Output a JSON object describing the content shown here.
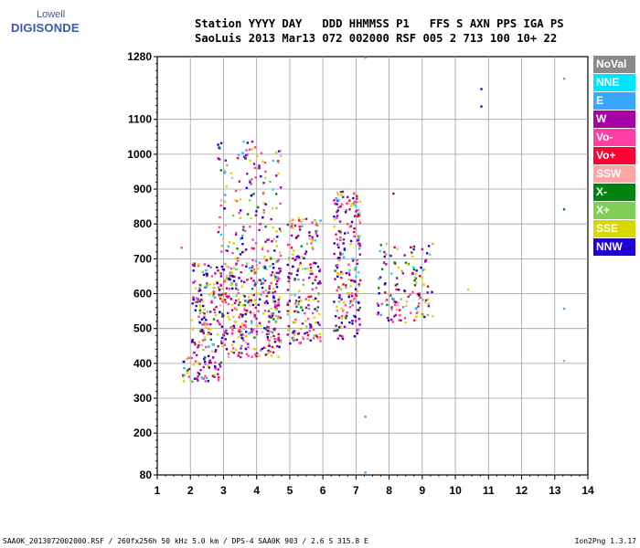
{
  "logo": {
    "line1": "Lowell",
    "line2": "DIGISONDE"
  },
  "header": {
    "line1": "Station YYYY DAY   DDD HHMMSS P1   FFS S AXN PPS IGA PS",
    "line2": "SaoLuis 2013 Mar13 072 002000 RSF 005 2 713 100 10+ 22"
  },
  "footer": {
    "left": "SAA0K_2013072002000.RSF / 260fx256h 50 kHz 5.0 km / DPS-4 SAA0K 903 / 2.6 S 315.8 E",
    "right": "Ion2Png 1.3.17"
  },
  "colors": {
    "NoVal": "#8a8a8a",
    "NNE": "#00e5ff",
    "E": "#3aa6ff",
    "W": "#a600a6",
    "Vo-": "#ff3fa6",
    "Vo+": "#ff0033",
    "SSW": "#ffa6a6",
    "X-": "#00840f",
    "X+": "#7fcf57",
    "SSE": "#d8d800",
    "NNW": "#1f00d6"
  },
  "chart_data": {
    "type": "scatter",
    "title": "",
    "xlabel": "",
    "ylabel": "",
    "xlim": [
      1,
      14
    ],
    "ylim": [
      80,
      1280
    ],
    "x_ticks": [
      1,
      2,
      3,
      4,
      5,
      6,
      7,
      8,
      9,
      10,
      11,
      12,
      13,
      14
    ],
    "y_ticks": [
      80,
      200,
      300,
      400,
      500,
      600,
      700,
      800,
      900,
      1000,
      1100,
      1280
    ],
    "grid": true,
    "legend_placement": "right",
    "legend": [
      "NoVal",
      "NNE",
      "E",
      "W",
      "Vo-",
      "Vo+",
      "SSW",
      "X-",
      "X+",
      "SSE",
      "NNW"
    ],
    "clusters": [
      {
        "x_range": [
          1.7,
          2.9
        ],
        "y_range": [
          350,
          420
        ],
        "weight": 60
      },
      {
        "x_range": [
          2.0,
          4.7
        ],
        "y_range": [
          420,
          690
        ],
        "weight": 520
      },
      {
        "x_range": [
          2.8,
          4.7
        ],
        "y_range": [
          690,
          1040
        ],
        "weight": 170
      },
      {
        "x_range": [
          4.9,
          5.9
        ],
        "y_range": [
          460,
          820
        ],
        "weight": 200
      },
      {
        "x_range": [
          6.3,
          7.1
        ],
        "y_range": [
          470,
          900
        ],
        "weight": 220
      },
      {
        "x_range": [
          7.6,
          9.3
        ],
        "y_range": [
          520,
          750
        ],
        "weight": 140
      }
    ],
    "sparse_points": [
      {
        "x": 7.25,
        "y": 1280,
        "dir": "E"
      },
      {
        "x": 7.25,
        "y": 250,
        "dir": "E"
      },
      {
        "x": 7.25,
        "y": 90,
        "dir": "E"
      },
      {
        "x": 10.75,
        "y": 1190,
        "dir": "NNW"
      },
      {
        "x": 10.75,
        "y": 1140,
        "dir": "NNW"
      },
      {
        "x": 13.25,
        "y": 1220,
        "dir": "E"
      },
      {
        "x": 13.25,
        "y": 560,
        "dir": "E"
      },
      {
        "x": 13.25,
        "y": 410,
        "dir": "X+"
      },
      {
        "x": 13.25,
        "y": 845,
        "dir": "X-"
      },
      {
        "x": 10.35,
        "y": 615,
        "dir": "SSE"
      },
      {
        "x": 1.7,
        "y": 735,
        "dir": "Vo-"
      },
      {
        "x": 8.1,
        "y": 890,
        "dir": "W"
      }
    ]
  }
}
